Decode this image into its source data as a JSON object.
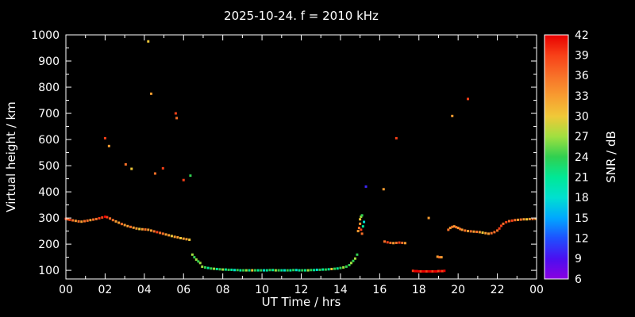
{
  "window": {
    "background": "#000000",
    "text_color": "#ffffff",
    "frame_color": "#ffffff"
  },
  "chart_data": {
    "type": "scatter",
    "title": "2025-10-24. f = 2010 kHz",
    "xlabel": "UT Time / hrs",
    "ylabel": "Virtual height / km",
    "colorbar_label": "SNR / dB",
    "xlim": [
      0,
      24
    ],
    "ylim": [
      67,
      1000
    ],
    "grid": false,
    "x_ticks": {
      "values": [
        0,
        2,
        4,
        6,
        8,
        10,
        12,
        14,
        16,
        18,
        20,
        22,
        24
      ],
      "labels": [
        "00",
        "02",
        "04",
        "06",
        "08",
        "10",
        "12",
        "14",
        "16",
        "18",
        "20",
        "22",
        "00"
      ]
    },
    "y_ticks": [
      100,
      200,
      300,
      400,
      500,
      600,
      700,
      800,
      900,
      1000
    ],
    "colorbar": {
      "min": 6,
      "max": 42,
      "ticks": [
        6,
        9,
        12,
        15,
        18,
        21,
        24,
        27,
        30,
        33,
        36,
        39,
        42
      ],
      "stops": [
        {
          "v": 6,
          "c": "#8a00e0"
        },
        {
          "v": 9,
          "c": "#4b0ff0"
        },
        {
          "v": 12,
          "c": "#1e50ff"
        },
        {
          "v": 15,
          "c": "#00a8ff"
        },
        {
          "v": 18,
          "c": "#00e0d0"
        },
        {
          "v": 21,
          "c": "#00e896"
        },
        {
          "v": 24,
          "c": "#30d050"
        },
        {
          "v": 27,
          "c": "#a0e040"
        },
        {
          "v": 30,
          "c": "#f0c838"
        },
        {
          "v": 33,
          "c": "#f89c30"
        },
        {
          "v": 36,
          "c": "#f87028"
        },
        {
          "v": 39,
          "c": "#f84018"
        },
        {
          "v": 42,
          "c": "#e80000"
        }
      ]
    },
    "points": [
      [
        0.0,
        297,
        39
      ],
      [
        0.1,
        295,
        36
      ],
      [
        0.2,
        293,
        39
      ],
      [
        0.35,
        291,
        36
      ],
      [
        0.5,
        289,
        33
      ],
      [
        0.65,
        287,
        36
      ],
      [
        0.8,
        286,
        33
      ],
      [
        0.95,
        288,
        36
      ],
      [
        1.1,
        290,
        36
      ],
      [
        1.25,
        292,
        33
      ],
      [
        1.4,
        294,
        36
      ],
      [
        1.55,
        296,
        36
      ],
      [
        1.7,
        299,
        39
      ],
      [
        1.85,
        302,
        39
      ],
      [
        2.0,
        305,
        42
      ],
      [
        2.1,
        303,
        39
      ],
      [
        2.25,
        298,
        36
      ],
      [
        2.4,
        292,
        36
      ],
      [
        2.55,
        287,
        33
      ],
      [
        2.7,
        282,
        33
      ],
      [
        2.85,
        277,
        36
      ],
      [
        3.0,
        273,
        33
      ],
      [
        3.15,
        269,
        33
      ],
      [
        3.3,
        266,
        36
      ],
      [
        3.45,
        263,
        33
      ],
      [
        3.6,
        260,
        33
      ],
      [
        3.75,
        258,
        30
      ],
      [
        3.9,
        257,
        33
      ],
      [
        4.05,
        256,
        36
      ],
      [
        4.2,
        255,
        33
      ],
      [
        4.35,
        252,
        33
      ],
      [
        4.5,
        249,
        36
      ],
      [
        4.65,
        246,
        39
      ],
      [
        4.8,
        243,
        36
      ],
      [
        4.95,
        240,
        36
      ],
      [
        5.1,
        237,
        33
      ],
      [
        5.25,
        234,
        33
      ],
      [
        5.4,
        231,
        30
      ],
      [
        5.55,
        228,
        33
      ],
      [
        5.7,
        226,
        33
      ],
      [
        5.85,
        223,
        30
      ],
      [
        6.0,
        221,
        33
      ],
      [
        6.15,
        219,
        33
      ],
      [
        6.3,
        217,
        30
      ],
      [
        6.45,
        160,
        27
      ],
      [
        6.55,
        150,
        24
      ],
      [
        6.65,
        141,
        27
      ],
      [
        6.75,
        134,
        24
      ],
      [
        6.85,
        128,
        27
      ],
      [
        6.95,
        114,
        27
      ],
      [
        7.1,
        111,
        24
      ],
      [
        7.25,
        109,
        21
      ],
      [
        7.4,
        107,
        24
      ],
      [
        7.55,
        106,
        27
      ],
      [
        7.7,
        105,
        21
      ],
      [
        7.85,
        104,
        24
      ],
      [
        8.0,
        103,
        27
      ],
      [
        8.15,
        103,
        21
      ],
      [
        8.3,
        102,
        24
      ],
      [
        8.45,
        102,
        21
      ],
      [
        8.6,
        101,
        18
      ],
      [
        8.75,
        101,
        24
      ],
      [
        8.9,
        100,
        21
      ],
      [
        9.05,
        100,
        24
      ],
      [
        9.2,
        100,
        27
      ],
      [
        9.35,
        100,
        21
      ],
      [
        9.5,
        100,
        30
      ],
      [
        9.65,
        100,
        24
      ],
      [
        9.8,
        100,
        21
      ],
      [
        9.95,
        100,
        24
      ],
      [
        10.1,
        100,
        18
      ],
      [
        10.25,
        100,
        21
      ],
      [
        10.4,
        101,
        24
      ],
      [
        10.55,
        101,
        21
      ],
      [
        10.7,
        100,
        27
      ],
      [
        10.85,
        100,
        24
      ],
      [
        11.0,
        100,
        21
      ],
      [
        11.15,
        100,
        18
      ],
      [
        11.3,
        100,
        24
      ],
      [
        11.45,
        100,
        21
      ],
      [
        11.6,
        101,
        24
      ],
      [
        11.75,
        101,
        18
      ],
      [
        11.9,
        100,
        21
      ],
      [
        12.05,
        100,
        24
      ],
      [
        12.2,
        100,
        21
      ],
      [
        12.35,
        100,
        27
      ],
      [
        12.5,
        101,
        24
      ],
      [
        12.65,
        101,
        21
      ],
      [
        12.8,
        102,
        18
      ],
      [
        12.95,
        102,
        24
      ],
      [
        13.1,
        103,
        21
      ],
      [
        13.25,
        103,
        24
      ],
      [
        13.4,
        104,
        21
      ],
      [
        13.55,
        105,
        30
      ],
      [
        13.7,
        106,
        24
      ],
      [
        13.85,
        107,
        21
      ],
      [
        14.0,
        109,
        24
      ],
      [
        14.15,
        111,
        27
      ],
      [
        14.3,
        114,
        24
      ],
      [
        14.45,
        120,
        24
      ],
      [
        14.55,
        128,
        27
      ],
      [
        14.65,
        136,
        24
      ],
      [
        14.75,
        145,
        27
      ],
      [
        14.85,
        160,
        24
      ],
      [
        14.9,
        250,
        33
      ],
      [
        14.95,
        262,
        36
      ],
      [
        15.0,
        278,
        33
      ],
      [
        15.0,
        295,
        30
      ],
      [
        15.05,
        305,
        27
      ],
      [
        15.1,
        310,
        24
      ],
      [
        15.05,
        255,
        39
      ],
      [
        15.1,
        240,
        36
      ],
      [
        15.15,
        268,
        21
      ],
      [
        15.2,
        285,
        18
      ],
      [
        15.3,
        420,
        10
      ],
      [
        16.2,
        410,
        33
      ],
      [
        16.25,
        210,
        36
      ],
      [
        16.4,
        207,
        39
      ],
      [
        16.55,
        205,
        36
      ],
      [
        16.7,
        204,
        33
      ],
      [
        16.85,
        205,
        36
      ],
      [
        16.85,
        605,
        39
      ],
      [
        17.0,
        206,
        39
      ],
      [
        17.15,
        205,
        36
      ],
      [
        17.3,
        204,
        33
      ],
      [
        17.7,
        98,
        39
      ],
      [
        17.8,
        97,
        42
      ],
      [
        17.9,
        97,
        42
      ],
      [
        18.0,
        96,
        42
      ],
      [
        18.1,
        96,
        39
      ],
      [
        18.2,
        96,
        42
      ],
      [
        18.3,
        96,
        42
      ],
      [
        18.4,
        96,
        39
      ],
      [
        18.5,
        96,
        42
      ],
      [
        18.5,
        300,
        33
      ],
      [
        18.6,
        96,
        42
      ],
      [
        18.7,
        96,
        39
      ],
      [
        18.8,
        96,
        42
      ],
      [
        18.9,
        96,
        42
      ],
      [
        19.0,
        97,
        39
      ],
      [
        19.1,
        97,
        42
      ],
      [
        19.2,
        97,
        39
      ],
      [
        19.3,
        98,
        42
      ],
      [
        18.95,
        152,
        33
      ],
      [
        19.05,
        150,
        36
      ],
      [
        19.15,
        150,
        33
      ],
      [
        19.5,
        255,
        36
      ],
      [
        19.6,
        262,
        33
      ],
      [
        19.7,
        266,
        36
      ],
      [
        19.7,
        690,
        33
      ],
      [
        19.8,
        268,
        33
      ],
      [
        19.9,
        265,
        36
      ],
      [
        20.0,
        262,
        33
      ],
      [
        20.1,
        258,
        36
      ],
      [
        20.2,
        255,
        33
      ],
      [
        20.35,
        252,
        36
      ],
      [
        20.5,
        250,
        33
      ],
      [
        20.5,
        755,
        39
      ],
      [
        20.65,
        249,
        36
      ],
      [
        20.8,
        248,
        33
      ],
      [
        20.95,
        247,
        36
      ],
      [
        21.1,
        246,
        33
      ],
      [
        21.25,
        244,
        30
      ],
      [
        21.4,
        242,
        33
      ],
      [
        21.55,
        240,
        33
      ],
      [
        21.7,
        242,
        36
      ],
      [
        21.85,
        246,
        36
      ],
      [
        22.0,
        252,
        36
      ],
      [
        22.1,
        260,
        39
      ],
      [
        22.2,
        270,
        39
      ],
      [
        22.3,
        278,
        36
      ],
      [
        22.45,
        284,
        39
      ],
      [
        22.6,
        288,
        36
      ],
      [
        22.75,
        290,
        39
      ],
      [
        22.9,
        292,
        36
      ],
      [
        23.05,
        293,
        33
      ],
      [
        23.2,
        294,
        36
      ],
      [
        23.35,
        295,
        33
      ],
      [
        23.5,
        295,
        30
      ],
      [
        23.65,
        296,
        33
      ],
      [
        23.8,
        296,
        36
      ],
      [
        23.95,
        297,
        33
      ],
      [
        2.0,
        605,
        39
      ],
      [
        2.2,
        575,
        33
      ],
      [
        3.05,
        505,
        36
      ],
      [
        3.35,
        488,
        30
      ],
      [
        4.2,
        975,
        30
      ],
      [
        4.35,
        775,
        33
      ],
      [
        4.55,
        470,
        36
      ],
      [
        4.95,
        490,
        39
      ],
      [
        5.6,
        700,
        39
      ],
      [
        5.65,
        682,
        36
      ],
      [
        6.0,
        445,
        39
      ],
      [
        6.35,
        462,
        24
      ]
    ]
  }
}
